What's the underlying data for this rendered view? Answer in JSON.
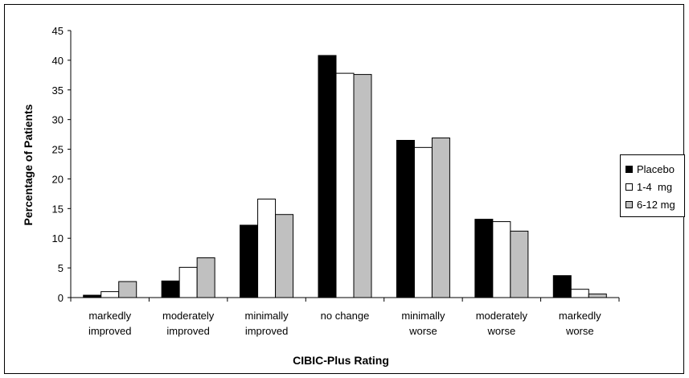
{
  "chart_data": {
    "type": "bar",
    "title": "",
    "xlabel": "CIBIC-Plus Rating",
    "ylabel": "Percentage of Patients",
    "ylim": [
      0,
      45
    ],
    "yticks": [
      "0",
      "5",
      "10",
      "15",
      "20",
      "25",
      "30",
      "35",
      "40",
      "45"
    ],
    "categories": [
      [
        "markedly",
        "improved"
      ],
      [
        "moderately",
        "improved"
      ],
      [
        "minimally",
        "improved"
      ],
      [
        "no change"
      ],
      [
        "minimally",
        "worse"
      ],
      [
        "moderately",
        "worse"
      ],
      [
        "markedly",
        "worse"
      ]
    ],
    "series": [
      {
        "name": "Placebo",
        "color": "#000000",
        "values": [
          0.4,
          2.8,
          12.2,
          40.8,
          26.5,
          13.2,
          3.7
        ]
      },
      {
        "name": "1-4  mg",
        "color": "#ffffff",
        "values": [
          1.0,
          5.1,
          16.6,
          37.8,
          25.3,
          12.8,
          1.4
        ]
      },
      {
        "name": "6-12 mg",
        "color": "#c0c0c0",
        "values": [
          2.7,
          6.7,
          14.0,
          37.6,
          26.9,
          11.2,
          0.6
        ]
      }
    ],
    "grid": false,
    "legend_position": "right"
  }
}
